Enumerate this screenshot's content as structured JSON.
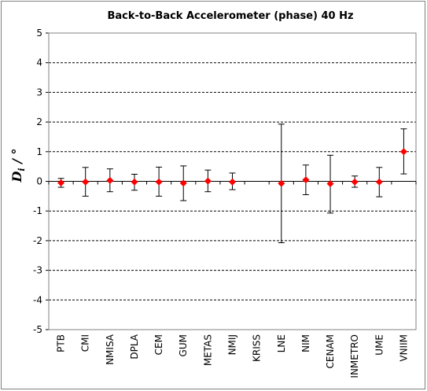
{
  "chart_data": {
    "type": "scatter",
    "title": "Back-to-Back Accelerometer  (phase)   40 Hz",
    "ylabel_main": "D",
    "ylabel_sub": "i",
    "ylabel_rest": " / °",
    "xlabel": "",
    "ylim": [
      -5,
      5
    ],
    "yticks": [
      "5",
      "4",
      "3",
      "2",
      "1",
      "0",
      "-1",
      "-2",
      "-3",
      "-4",
      "-5"
    ],
    "grid": "horizontal dashed",
    "legend": "none",
    "marker_color": "#ff0000",
    "errorbar_color": "#000000",
    "categories": [
      "PTB",
      "CMI",
      "NMISA",
      "DPLA",
      "CEM",
      "GUM",
      "METAS",
      "NMIJ",
      "KRISS",
      "LNE",
      "NIM",
      "CENAM",
      "INMETRO",
      "UME",
      "VNIIM"
    ],
    "values": [
      -0.05,
      -0.02,
      0.03,
      -0.02,
      -0.02,
      -0.06,
      0.01,
      -0.02,
      null,
      -0.07,
      0.05,
      -0.08,
      -0.02,
      -0.02,
      1.0
    ],
    "error_low": [
      -0.2,
      -0.5,
      -0.35,
      -0.3,
      -0.5,
      -0.65,
      -0.35,
      -0.28,
      null,
      -2.07,
      -0.45,
      -1.07,
      -0.2,
      -0.52,
      0.25
    ],
    "error_high": [
      0.1,
      0.47,
      0.42,
      0.24,
      0.48,
      0.52,
      0.38,
      0.28,
      null,
      1.93,
      0.55,
      0.88,
      0.18,
      0.47,
      1.77
    ]
  }
}
